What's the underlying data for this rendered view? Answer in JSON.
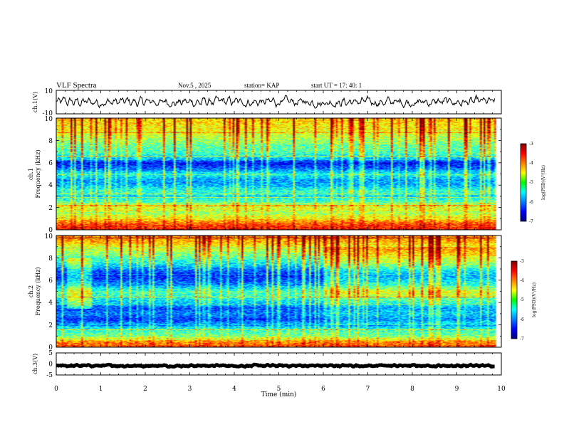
{
  "header": {
    "title": "VLF Spectra",
    "date": "Nov.5 , 2025",
    "station": "station= KAP",
    "start_time": "start UT = 17: 40: 1"
  },
  "chart_data": [
    {
      "id": "ch1-waveform",
      "type": "line",
      "ylabel": "ch.1(V)",
      "ylim": [
        -10,
        10
      ],
      "y_ticks": [
        "10",
        "-10"
      ],
      "xlim": [
        0,
        10
      ],
      "series_mean": 0,
      "series_amplitude": 5
    },
    {
      "id": "ch1-spectrogram",
      "type": "heatmap",
      "ylabel": "ch.1",
      "ylabel2": "Frequency (kHz)",
      "ylim": [
        0,
        10
      ],
      "y_ticks": [
        "0",
        "2",
        "4",
        "6",
        "8",
        "10"
      ],
      "xlim": [
        0,
        10
      ],
      "data_end_min": 9.85,
      "colorbar": {
        "label": "log(PSD)(V²/Hz)",
        "range": [
          -7,
          -3
        ],
        "ticks": [
          "-3",
          "-4",
          "-5",
          "-6",
          "-7"
        ]
      },
      "band_profile_log_psd": [
        {
          "f": 0.2,
          "v": -3.6
        },
        {
          "f": 0.6,
          "v": -3.9
        },
        {
          "f": 1.0,
          "v": -4.4
        },
        {
          "f": 1.5,
          "v": -4.9
        },
        {
          "f": 2.0,
          "v": -4.6
        },
        {
          "f": 2.5,
          "v": -5.2
        },
        {
          "f": 3.0,
          "v": -5.5
        },
        {
          "f": 3.5,
          "v": -5.3
        },
        {
          "f": 4.0,
          "v": -5.8
        },
        {
          "f": 4.5,
          "v": -5.9
        },
        {
          "f": 5.0,
          "v": -5.4
        },
        {
          "f": 5.5,
          "v": -6.1
        },
        {
          "f": 6.0,
          "v": -6.5
        },
        {
          "f": 6.5,
          "v": -5.6
        },
        {
          "f": 7.0,
          "v": -5.2
        },
        {
          "f": 7.5,
          "v": -5.1
        },
        {
          "f": 8.0,
          "v": -4.9
        },
        {
          "f": 8.5,
          "v": -4.7
        },
        {
          "f": 9.0,
          "v": -4.5
        },
        {
          "f": 9.5,
          "v": -4.4
        },
        {
          "f": 10.0,
          "v": -4.3
        }
      ]
    },
    {
      "id": "ch2-spectrogram",
      "type": "heatmap",
      "ylabel": "ch.2",
      "ylabel2": "Frequency (kHz)",
      "ylim": [
        0,
        10
      ],
      "y_ticks": [
        "0",
        "2",
        "4",
        "6",
        "8",
        "10"
      ],
      "xlim": [
        0,
        10
      ],
      "data_end_min": 9.85,
      "colorbar": {
        "label": "log(PSD)(V²/Hz)",
        "range": [
          -7,
          -3
        ],
        "ticks": [
          "-3",
          "-4",
          "-5",
          "-6",
          "-7"
        ]
      },
      "band_profile_log_psd": [
        {
          "f": 0.2,
          "v": -3.8
        },
        {
          "f": 0.6,
          "v": -4.2
        },
        {
          "f": 1.0,
          "v": -5.0
        },
        {
          "f": 1.5,
          "v": -5.3
        },
        {
          "f": 2.0,
          "v": -5.8
        },
        {
          "f": 2.5,
          "v": -6.3
        },
        {
          "f": 3.0,
          "v": -6.0
        },
        {
          "f": 3.5,
          "v": -6.2
        },
        {
          "f": 4.0,
          "v": -5.7
        },
        {
          "f": 4.5,
          "v": -5.4
        },
        {
          "f": 5.0,
          "v": -5.2
        },
        {
          "f": 5.5,
          "v": -5.8
        },
        {
          "f": 6.0,
          "v": -6.2
        },
        {
          "f": 6.5,
          "v": -6.4
        },
        {
          "f": 7.0,
          "v": -6.0
        },
        {
          "f": 7.5,
          "v": -5.5
        },
        {
          "f": 8.0,
          "v": -5.2
        },
        {
          "f": 8.5,
          "v": -4.9
        },
        {
          "f": 9.0,
          "v": -4.6
        },
        {
          "f": 9.5,
          "v": -4.2
        },
        {
          "f": 10.0,
          "v": -4.0
        }
      ],
      "regime_change_min": 6.0
    },
    {
      "id": "ch3-waveform",
      "type": "line",
      "ylabel": "ch.3(V)",
      "ylim": [
        -5,
        5
      ],
      "y_ticks": [
        "5",
        "0",
        "-5"
      ],
      "xlim": [
        0,
        10
      ],
      "series_mean": -0.8,
      "series_amplitude": 0.5
    }
  ],
  "x_axis": {
    "label": "Time (min)",
    "ticks": [
      "0",
      "1",
      "2",
      "3",
      "4",
      "5",
      "6",
      "7",
      "8",
      "9",
      "10"
    ],
    "range": [
      0,
      10
    ]
  }
}
